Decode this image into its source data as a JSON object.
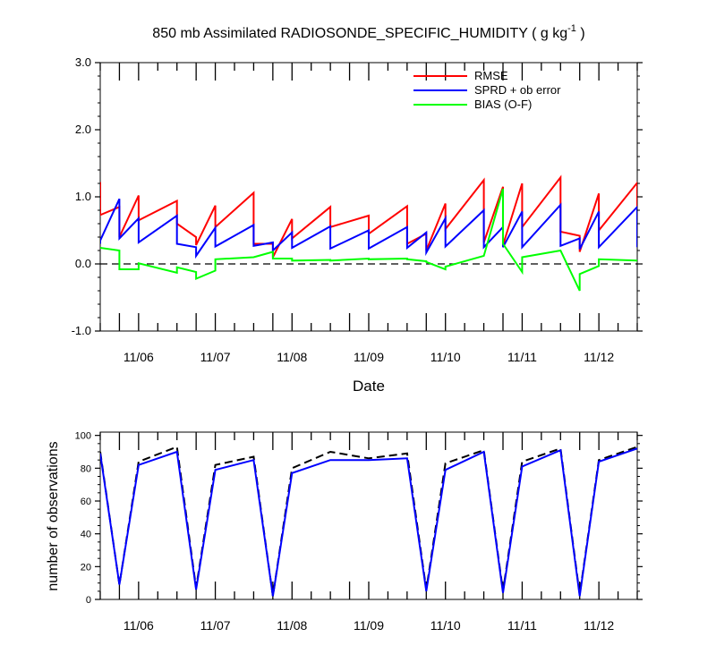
{
  "title_main": "850 mb Assimilated RADIOSONDE_SPECIFIC_HUMIDITY ( g kg",
  "title_sup": "-1",
  "title_close": " )",
  "date_ticks": [
    "11/06",
    "11/07",
    "11/08",
    "11/09",
    "11/10",
    "11/11",
    "11/12"
  ],
  "colors": {
    "rmse": "#ff0000",
    "sprd": "#0000ff",
    "bias": "#00ff00",
    "axis": "#000000"
  },
  "chart_data": [
    {
      "type": "line",
      "title": "850 mb Assimilated RADIOSONDE_SPECIFIC_HUMIDITY ( g kg-1 )",
      "xlabel": "Date",
      "ylabel": "",
      "x_unit": "day (November)",
      "xlim": [
        5.5,
        12.5
      ],
      "ylim": [
        -1.0,
        3.0
      ],
      "y_ticks": [
        "-1.0",
        "0.0",
        "1.0",
        "2.0",
        "3.0"
      ],
      "y_tick_values": [
        -1,
        0,
        1,
        2,
        3
      ],
      "reference_line": {
        "y": 0,
        "style": "dashed"
      },
      "legend": {
        "placement": "top-right"
      },
      "series": [
        {
          "name": "RMSE",
          "color": "#ff0000",
          "x": [
            5.5,
            5.5,
            5.75,
            5.75,
            6.0,
            6.0,
            6.5,
            6.5,
            6.75,
            6.75,
            7.0,
            7.0,
            7.5,
            7.5,
            7.75,
            7.75,
            8.0,
            8.0,
            8.5,
            8.5,
            9.0,
            9.0,
            9.5,
            9.5,
            9.75,
            9.75,
            10.0,
            10.0,
            10.5,
            10.5,
            10.75,
            10.75,
            11.0,
            11.0,
            11.5,
            11.5,
            11.75,
            11.75,
            12.0,
            12.0,
            12.5,
            12.5
          ],
          "y": [
            1.22,
            0.73,
            0.85,
            0.4,
            1.02,
            0.65,
            0.94,
            0.6,
            0.4,
            0.28,
            0.87,
            0.55,
            1.06,
            0.3,
            0.3,
            0.1,
            0.67,
            0.38,
            0.85,
            0.55,
            0.72,
            0.45,
            0.86,
            0.3,
            0.45,
            0.2,
            0.9,
            0.52,
            1.25,
            0.32,
            1.15,
            0.28,
            1.2,
            0.55,
            1.29,
            0.48,
            0.42,
            0.18,
            1.05,
            0.5,
            1.21,
            0.3
          ]
        },
        {
          "name": "SPRD + ob error",
          "color": "#0000ff",
          "x": [
            5.5,
            5.5,
            5.75,
            5.75,
            6.0,
            6.0,
            6.5,
            6.5,
            6.75,
            6.75,
            7.0,
            7.0,
            7.5,
            7.5,
            7.75,
            7.75,
            8.0,
            8.0,
            8.5,
            8.5,
            9.0,
            9.0,
            9.5,
            9.5,
            9.75,
            9.75,
            10.0,
            10.0,
            10.5,
            10.5,
            10.75,
            10.75,
            11.0,
            11.0,
            11.5,
            11.5,
            11.75,
            11.75,
            12.0,
            12.0,
            12.5,
            12.5
          ],
          "y": [
            0.3,
            0.35,
            0.97,
            0.38,
            0.68,
            0.32,
            0.72,
            0.3,
            0.25,
            0.12,
            0.54,
            0.26,
            0.58,
            0.27,
            0.32,
            0.2,
            0.47,
            0.24,
            0.56,
            0.23,
            0.5,
            0.23,
            0.55,
            0.24,
            0.47,
            0.17,
            0.68,
            0.26,
            0.8,
            0.25,
            0.55,
            0.25,
            0.78,
            0.25,
            0.88,
            0.27,
            0.38,
            0.22,
            0.78,
            0.25,
            0.85,
            0.25
          ]
        },
        {
          "name": "BIAS (O-F)",
          "color": "#00ff00",
          "x": [
            5.5,
            5.75,
            5.75,
            6.0,
            6.0,
            6.5,
            6.5,
            6.75,
            6.75,
            7.0,
            7.0,
            7.5,
            7.5,
            7.75,
            7.75,
            8.0,
            8.0,
            8.5,
            8.5,
            9.0,
            9.0,
            9.5,
            9.5,
            9.75,
            9.75,
            10.0,
            10.0,
            10.5,
            10.5,
            10.75,
            10.75,
            11.0,
            11.0,
            11.5,
            11.5,
            11.75,
            11.75,
            12.0,
            12.0,
            12.5
          ],
          "y": [
            0.24,
            0.2,
            -0.08,
            -0.08,
            0.01,
            -0.13,
            -0.05,
            -0.12,
            -0.22,
            -0.1,
            0.07,
            0.1,
            0.1,
            0.18,
            0.08,
            0.08,
            0.05,
            0.06,
            0.05,
            0.08,
            0.07,
            0.08,
            0.07,
            0.04,
            0.03,
            -0.08,
            -0.04,
            0.12,
            0.12,
            1.12,
            0.3,
            -0.12,
            0.1,
            0.2,
            0.2,
            -0.4,
            -0.15,
            -0.03,
            0.07,
            0.05
          ]
        }
      ]
    },
    {
      "type": "line",
      "title": "",
      "xlabel": "",
      "ylabel": "number of observations",
      "x_unit": "day (November)",
      "xlim": [
        5.5,
        12.5
      ],
      "ylim": [
        0,
        102
      ],
      "y_ticks": [
        "0",
        "20",
        "40",
        "60",
        "80",
        "100"
      ],
      "y_tick_values": [
        0,
        20,
        40,
        60,
        80,
        100
      ],
      "series": [
        {
          "key": "possible",
          "color": "#000000",
          "style": "dashed",
          "x": [
            5.5,
            5.75,
            6.0,
            6.5,
            6.75,
            7.0,
            7.5,
            7.75,
            8.0,
            8.5,
            9.0,
            9.5,
            9.75,
            10.0,
            10.5,
            10.75,
            11.0,
            11.5,
            11.75,
            12.0,
            12.5
          ],
          "y": [
            90,
            9,
            84,
            93,
            7,
            82,
            87,
            2,
            80,
            90,
            86,
            89,
            6,
            83,
            91,
            5,
            84,
            92,
            3,
            85,
            93
          ]
        },
        {
          "key": "assimilated",
          "color": "#0000ff",
          "style": "solid",
          "x": [
            5.5,
            5.75,
            6.0,
            6.5,
            6.75,
            7.0,
            7.5,
            7.75,
            8.0,
            8.5,
            9.0,
            9.5,
            9.75,
            10.0,
            10.5,
            10.75,
            11.0,
            11.5,
            11.75,
            12.0,
            12.5
          ],
          "y": [
            89,
            9,
            82,
            90,
            6,
            79,
            85,
            2,
            77,
            85,
            85,
            86,
            5,
            79,
            90,
            4,
            81,
            91,
            2,
            84,
            92
          ]
        }
      ]
    }
  ]
}
